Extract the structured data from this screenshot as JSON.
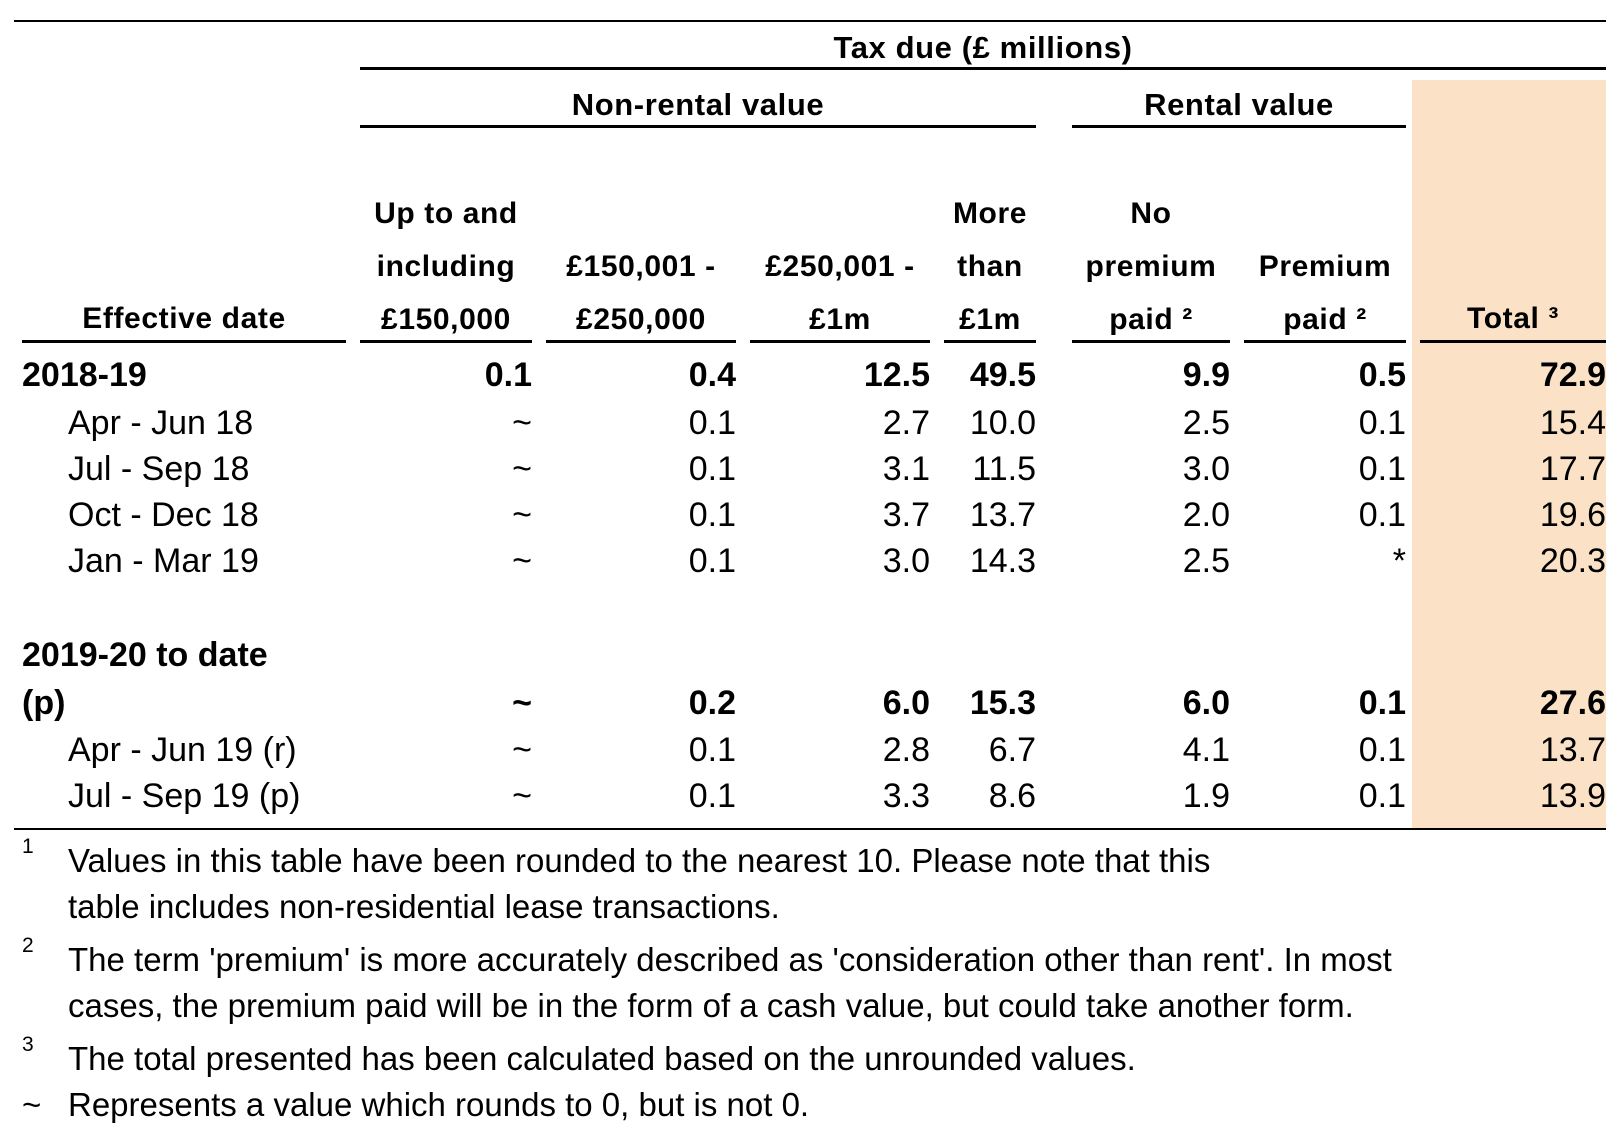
{
  "header": {
    "tax_due": "Tax due (£ millions)",
    "non_rental": "Non-rental value",
    "rental": "Rental value"
  },
  "columns": {
    "effective_date": "Effective date",
    "c1": [
      "Up to and",
      "including",
      "£150,000"
    ],
    "c2": [
      "£150,001 -",
      "£250,000"
    ],
    "c3": [
      "£250,001 -",
      "£1m"
    ],
    "c4": [
      "More",
      "than",
      "£1m"
    ],
    "c5": [
      "No",
      "premium",
      "paid ²"
    ],
    "c6": [
      "Premium",
      "paid ²"
    ],
    "c7": "Total ³"
  },
  "rows": [
    {
      "label": "2018-19",
      "values": [
        "0.1",
        "0.4",
        "12.5",
        "49.5",
        "9.9",
        "0.5",
        "72.9"
      ]
    },
    {
      "label": "Apr - Jun 18",
      "values": [
        "~",
        "0.1",
        "2.7",
        "10.0",
        "2.5",
        "0.1",
        "15.4"
      ]
    },
    {
      "label": "Jul - Sep 18",
      "values": [
        "~",
        "0.1",
        "3.1",
        "11.5",
        "3.0",
        "0.1",
        "17.7"
      ]
    },
    {
      "label": "Oct - Dec 18",
      "values": [
        "~",
        "0.1",
        "3.7",
        "13.7",
        "2.0",
        "0.1",
        "19.6"
      ]
    },
    {
      "label": "Jan - Mar 19",
      "values": [
        "~",
        "0.1",
        "3.0",
        "14.3",
        "2.5",
        "*",
        "20.3"
      ]
    },
    {
      "label": [
        "2019-20 to date",
        "(p)"
      ],
      "values": [
        "~",
        "0.2",
        "6.0",
        "15.3",
        "6.0",
        "0.1",
        "27.6"
      ]
    },
    {
      "label": "Apr - Jun 19 (r)",
      "values": [
        "~",
        "0.1",
        "2.8",
        "6.7",
        "4.1",
        "0.1",
        "13.7"
      ]
    },
    {
      "label": "Jul - Sep 19 (p)",
      "values": [
        "~",
        "0.1",
        "3.3",
        "8.6",
        "1.9",
        "0.1",
        "13.9"
      ]
    }
  ],
  "notes": [
    {
      "marker": "1",
      "text": [
        "Values in this table have been rounded to the nearest 10. Please note that this",
        "table includes non-residential lease transactions."
      ]
    },
    {
      "marker": "2",
      "text": [
        "The term 'premium' is more accurately described as 'consideration other than rent'. In most",
        "cases, the premium paid will be in the form of a cash value, but could take another form."
      ]
    },
    {
      "marker": "3",
      "text": [
        "The total presented has been calculated based on the unrounded values."
      ]
    },
    {
      "marker": "~",
      "text": [
        "Represents a value which rounds to 0, but is not 0."
      ]
    }
  ],
  "colors": {
    "total_column_bg": "#fbe2c6"
  }
}
